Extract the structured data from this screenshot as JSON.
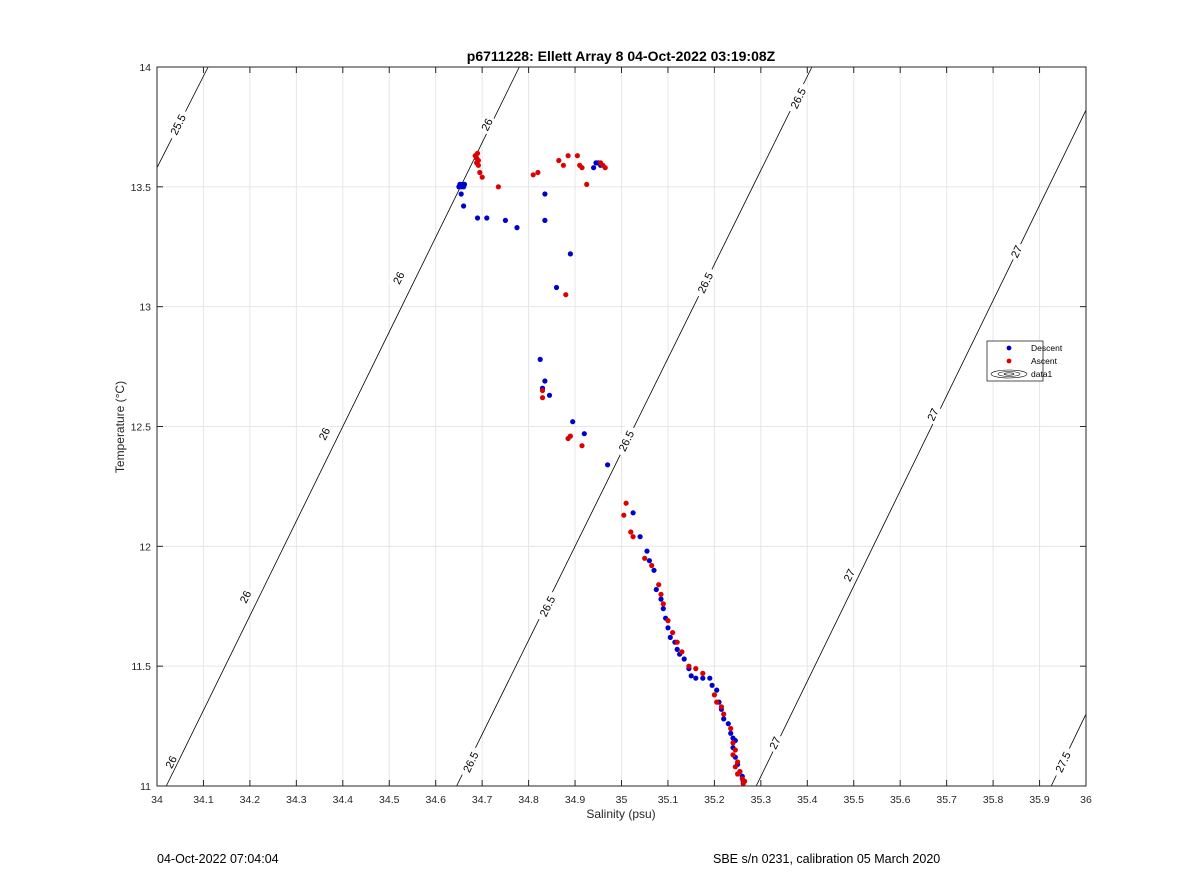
{
  "chart_data": {
    "type": "scatter",
    "title": "p6711228: Ellett Array 8 04-Oct-2022 03:19:08Z",
    "xlabel": "Salinity (psu)",
    "ylabel": "Temperature (°C)",
    "xlim": [
      34,
      36
    ],
    "ylim": [
      11,
      14
    ],
    "xticks": [
      "34",
      "34.1",
      "34.2",
      "34.3",
      "34.4",
      "34.5",
      "34.6",
      "34.7",
      "34.8",
      "34.9",
      "35",
      "35.1",
      "35.2",
      "35.3",
      "35.4",
      "35.5",
      "35.6",
      "35.7",
      "35.8",
      "35.9",
      "36"
    ],
    "yticks": [
      "11",
      "11.5",
      "12",
      "12.5",
      "13",
      "13.5",
      "14"
    ],
    "grid": true,
    "legend_placement": "right",
    "legend": [
      "Descent",
      "Ascent",
      "data1"
    ],
    "colors": {
      "descent": "#0000cc",
      "ascent": "#dd0000",
      "contour": "#000000",
      "grid": "#e6e6e6"
    },
    "contours": [
      {
        "level": 25.5,
        "label": "25.5",
        "points": [
          [
            34.0,
            13.58
          ],
          [
            34.11,
            14.0
          ]
        ]
      },
      {
        "level": 26,
        "label": "26",
        "points": [
          [
            34.02,
            11.0
          ],
          [
            34.78,
            14.0
          ]
        ]
      },
      {
        "level": 26.5,
        "label": "26.5",
        "points": [
          [
            34.645,
            11.0
          ],
          [
            35.41,
            14.0
          ]
        ]
      },
      {
        "level": 27,
        "label": "27",
        "points": [
          [
            35.29,
            11.0
          ],
          [
            36.0,
            13.82
          ]
        ]
      },
      {
        "level": 27.5,
        "label": "27.5",
        "points": [
          [
            35.925,
            11.0
          ],
          [
            36.0,
            11.3
          ]
        ]
      }
    ],
    "contour_labels": [
      {
        "text": "25.5",
        "s": 34.045,
        "t": 13.76
      },
      {
        "text": "26",
        "s": 34.71,
        "t": 13.76
      },
      {
        "text": "26",
        "s": 34.52,
        "t": 13.12
      },
      {
        "text": "26",
        "s": 34.36,
        "t": 12.47
      },
      {
        "text": "26",
        "s": 34.19,
        "t": 11.79
      },
      {
        "text": "26",
        "s": 34.03,
        "t": 11.1
      },
      {
        "text": "26.5",
        "s": 35.38,
        "t": 13.87
      },
      {
        "text": "26.5",
        "s": 35.18,
        "t": 13.1
      },
      {
        "text": "26.5",
        "s": 35.01,
        "t": 12.44
      },
      {
        "text": "26.5",
        "s": 34.84,
        "t": 11.75
      },
      {
        "text": "26.5",
        "s": 34.675,
        "t": 11.1
      },
      {
        "text": "27",
        "s": 35.85,
        "t": 13.23
      },
      {
        "text": "27",
        "s": 35.67,
        "t": 12.55
      },
      {
        "text": "27",
        "s": 35.49,
        "t": 11.88
      },
      {
        "text": "27",
        "s": 35.33,
        "t": 11.18
      },
      {
        "text": "27.5",
        "s": 35.95,
        "t": 11.1
      }
    ],
    "series": [
      {
        "name": "Descent",
        "points": [
          [
            34.65,
            13.5
          ],
          [
            34.652,
            13.51
          ],
          [
            34.655,
            13.5
          ],
          [
            34.658,
            13.51
          ],
          [
            34.66,
            13.5
          ],
          [
            34.662,
            13.51
          ],
          [
            34.655,
            13.47
          ],
          [
            34.66,
            13.42
          ],
          [
            34.69,
            13.37
          ],
          [
            34.71,
            13.37
          ],
          [
            34.75,
            13.36
          ],
          [
            34.775,
            13.33
          ],
          [
            34.835,
            13.47
          ],
          [
            34.835,
            13.36
          ],
          [
            34.89,
            13.22
          ],
          [
            34.86,
            13.08
          ],
          [
            34.825,
            12.78
          ],
          [
            34.835,
            12.69
          ],
          [
            34.83,
            12.66
          ],
          [
            34.845,
            12.63
          ],
          [
            34.895,
            12.52
          ],
          [
            34.92,
            12.47
          ],
          [
            34.97,
            12.34
          ],
          [
            34.94,
            13.58
          ],
          [
            34.95,
            13.6
          ],
          [
            34.955,
            13.59
          ],
          [
            34.945,
            13.6
          ],
          [
            35.025,
            12.14
          ],
          [
            35.04,
            12.04
          ],
          [
            35.055,
            11.98
          ],
          [
            35.06,
            11.94
          ],
          [
            35.07,
            11.9
          ],
          [
            35.075,
            11.82
          ],
          [
            35.085,
            11.78
          ],
          [
            35.09,
            11.74
          ],
          [
            35.095,
            11.7
          ],
          [
            35.1,
            11.66
          ],
          [
            35.105,
            11.62
          ],
          [
            35.115,
            11.6
          ],
          [
            35.12,
            11.57
          ],
          [
            35.125,
            11.55
          ],
          [
            35.135,
            11.53
          ],
          [
            35.145,
            11.49
          ],
          [
            35.15,
            11.46
          ],
          [
            35.16,
            11.45
          ],
          [
            35.175,
            11.45
          ],
          [
            35.19,
            11.45
          ],
          [
            35.195,
            11.42
          ],
          [
            35.205,
            11.4
          ],
          [
            35.21,
            11.35
          ],
          [
            35.215,
            11.32
          ],
          [
            35.22,
            11.28
          ],
          [
            35.23,
            11.26
          ],
          [
            35.235,
            11.22
          ],
          [
            35.24,
            11.2
          ],
          [
            35.245,
            11.19
          ],
          [
            35.24,
            11.16
          ],
          [
            35.245,
            11.12
          ],
          [
            35.25,
            11.09
          ],
          [
            35.255,
            11.06
          ],
          [
            35.26,
            11.04
          ],
          [
            35.262,
            11.02
          ]
        ]
      },
      {
        "name": "Ascent",
        "points": [
          [
            34.685,
            13.63
          ],
          [
            34.688,
            13.62
          ],
          [
            34.69,
            13.64
          ],
          [
            34.692,
            13.61
          ],
          [
            34.688,
            13.6
          ],
          [
            34.692,
            13.59
          ],
          [
            34.695,
            13.56
          ],
          [
            34.7,
            13.54
          ],
          [
            34.735,
            13.5
          ],
          [
            34.81,
            13.55
          ],
          [
            34.82,
            13.56
          ],
          [
            34.865,
            13.61
          ],
          [
            34.875,
            13.59
          ],
          [
            34.885,
            13.63
          ],
          [
            34.905,
            13.63
          ],
          [
            34.91,
            13.59
          ],
          [
            34.915,
            13.58
          ],
          [
            34.925,
            13.51
          ],
          [
            34.955,
            13.6
          ],
          [
            34.96,
            13.59
          ],
          [
            34.965,
            13.58
          ],
          [
            34.88,
            13.05
          ],
          [
            34.83,
            12.65
          ],
          [
            34.83,
            12.62
          ],
          [
            34.885,
            12.45
          ],
          [
            34.89,
            12.46
          ],
          [
            34.915,
            12.42
          ],
          [
            35.01,
            12.18
          ],
          [
            35.005,
            12.13
          ],
          [
            35.02,
            12.06
          ],
          [
            35.025,
            12.04
          ],
          [
            35.05,
            11.95
          ],
          [
            35.065,
            11.92
          ],
          [
            35.08,
            11.84
          ],
          [
            35.085,
            11.8
          ],
          [
            35.09,
            11.76
          ],
          [
            35.1,
            11.69
          ],
          [
            35.11,
            11.64
          ],
          [
            35.12,
            11.6
          ],
          [
            35.13,
            11.56
          ],
          [
            35.145,
            11.5
          ],
          [
            35.16,
            11.49
          ],
          [
            35.175,
            11.47
          ],
          [
            35.2,
            11.38
          ],
          [
            35.205,
            11.35
          ],
          [
            35.215,
            11.33
          ],
          [
            35.22,
            11.3
          ],
          [
            35.235,
            11.24
          ],
          [
            35.24,
            11.18
          ],
          [
            35.245,
            11.15
          ],
          [
            35.24,
            11.13
          ],
          [
            35.25,
            11.1
          ],
          [
            35.245,
            11.08
          ],
          [
            35.255,
            11.06
          ],
          [
            35.25,
            11.05
          ],
          [
            35.26,
            11.03
          ],
          [
            35.265,
            11.02
          ],
          [
            35.262,
            11.01
          ]
        ]
      }
    ]
  },
  "footer": {
    "left": "04-Oct-2022 07:04:04",
    "right": "SBE s/n 0231, calibration 05 March 2020"
  }
}
